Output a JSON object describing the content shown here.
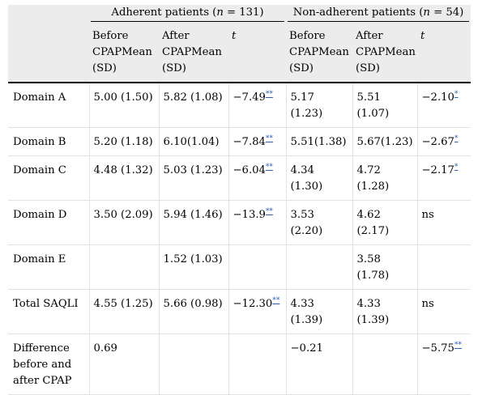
{
  "groups": {
    "adherent": "Adherent patients (n = 131)",
    "adherent_pre": "Adherent patients (",
    "adherent_n": "n",
    "adherent_post": " = 131)",
    "nonadherent_pre": "Non-adherent patients (",
    "nonadherent_n": "n",
    "nonadherent_post": " = 54)"
  },
  "headers": {
    "before": [
      "Before",
      "CPAPMean",
      "(SD)"
    ],
    "after": [
      "After",
      "CPAPMean",
      "(SD)"
    ],
    "t": "t"
  },
  "rows": [
    {
      "label": "Domain A",
      "a_before": "5.00 (1.50)",
      "a_after": "5.82 (1.08)",
      "a_t": "−7.49",
      "a_sig": "**",
      "n_before": "5.17 (1.23)",
      "n_after": "5.51 (1.07)",
      "n_t": "−2.10",
      "n_sig": "*"
    },
    {
      "label": "Domain B",
      "a_before": "5.20 (1.18)",
      "a_after": "6.10(1.04)",
      "a_t": "−7.84",
      "a_sig": "**",
      "n_before": "5.51(1.38)",
      "n_after": "5.67(1.23)",
      "n_t": "−2.67",
      "n_sig": "*"
    },
    {
      "label": "Domain C",
      "a_before": "4.48 (1.32)",
      "a_after": "5.03 (1.23)",
      "a_t": "−6.04",
      "a_sig": "**",
      "n_before": "4.34 (1.30)",
      "n_after": "4.72 (1.28)",
      "n_t": "−2.17",
      "n_sig": "*"
    },
    {
      "label": "Domain D",
      "a_before": "3.50 (2.09)",
      "a_after": "5.94 (1.46)",
      "a_t": "−13.9",
      "a_sig": "**",
      "n_before": "3.53 (2.20)",
      "n_after": "4.62 (2.17)",
      "n_t": "ns",
      "n_sig": ""
    },
    {
      "label": "Domain E",
      "a_before": "",
      "a_after": "1.52 (1.03)",
      "a_t": "",
      "a_sig": "",
      "n_before": "",
      "n_after": "3.58 (1.78)",
      "n_t": "",
      "n_sig": ""
    },
    {
      "label": "Total SAQLI",
      "a_before": "4.55 (1.25)",
      "a_after": "5.66 (0.98)",
      "a_t": "−12.30",
      "a_sig": "**",
      "n_before": "4.33 (1.39)",
      "n_after": "4.33 (1.39)",
      "n_t": "ns",
      "n_sig": ""
    },
    {
      "label": "Difference before and after CPAP",
      "a_before": "0.69",
      "a_after": "",
      "a_t": "",
      "a_sig": "",
      "n_before": "−0.21",
      "n_after": "",
      "n_t": "−5.75",
      "n_sig": "**"
    }
  ]
}
